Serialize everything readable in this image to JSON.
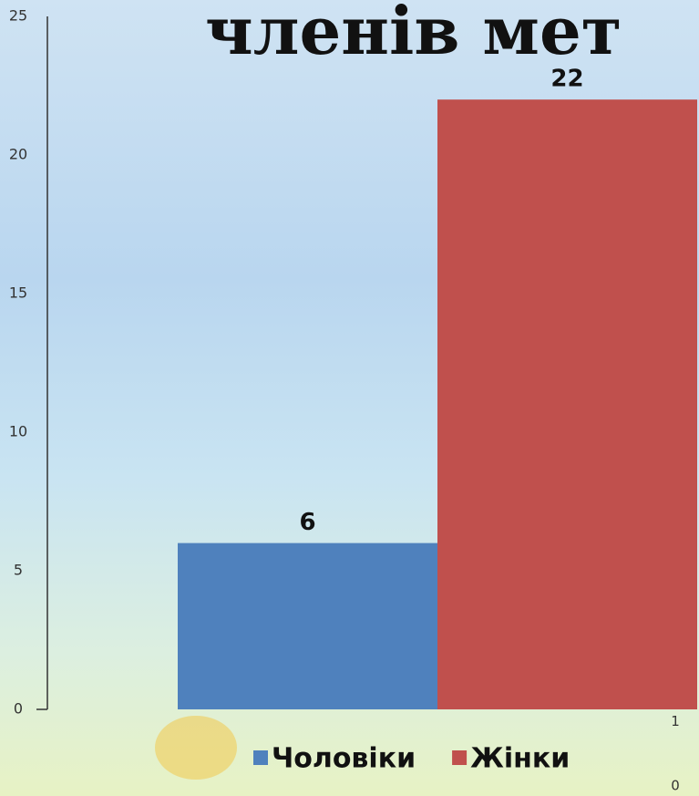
{
  "chart_data": {
    "type": "bar",
    "title": "членів мет",
    "categories": [
      null
    ],
    "series": [
      {
        "name": "Чоловіки",
        "color": "#4f81bd",
        "values": [
          6
        ]
      },
      {
        "name": "Жінки",
        "color": "#c0504d",
        "values": [
          22
        ]
      }
    ],
    "ylim": [
      0,
      25
    ],
    "yticks": [
      0,
      5,
      10,
      15,
      20,
      25
    ],
    "y2lim": [
      0,
      10
    ],
    "y2ticks": [
      0,
      1,
      2,
      3,
      4,
      5,
      6,
      7,
      8,
      9,
      10
    ],
    "legend": "bottom"
  }
}
